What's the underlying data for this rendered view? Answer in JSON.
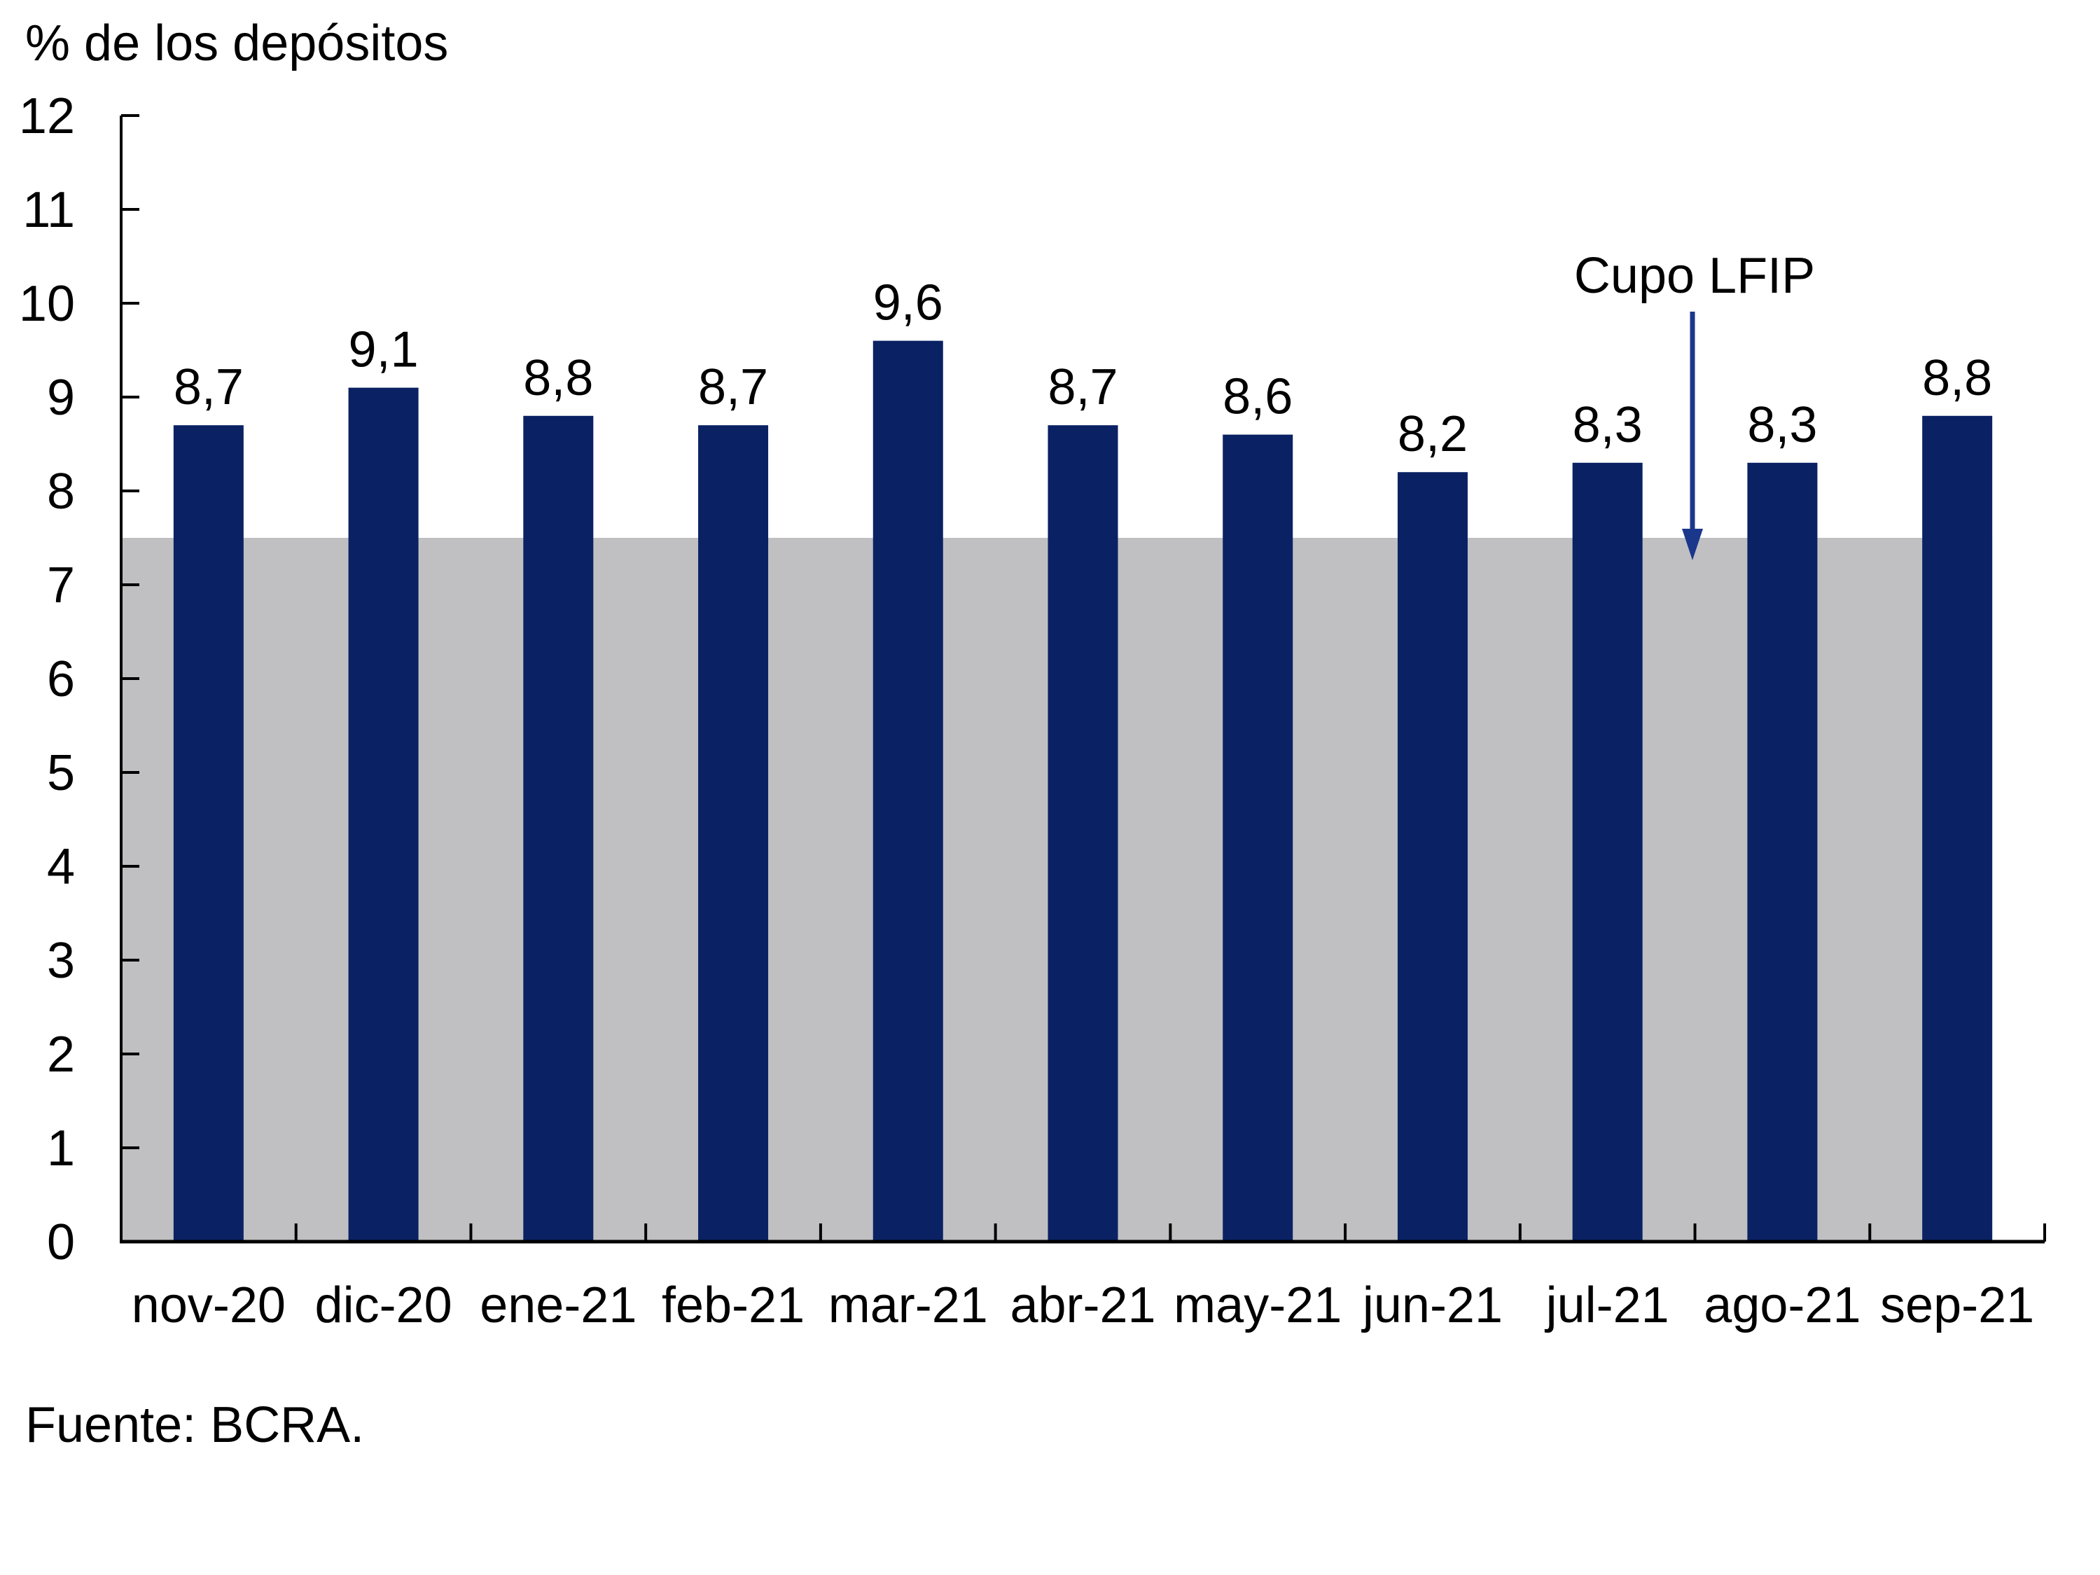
{
  "page": {
    "title": "% de los depósitos",
    "annotation_label": "Cupo LFIP",
    "source": "Fuente: BCRA."
  },
  "colors": {
    "bar": "#0A2264",
    "band": "#C0C0C2",
    "arrow": "#1B378C",
    "axis": "#000000",
    "text": "#000000",
    "background": "#FFFFFF"
  },
  "chart_data": {
    "type": "bar",
    "title": "% de los depósitos",
    "categories": [
      "nov-20",
      "dic-20",
      "ene-21",
      "feb-21",
      "mar-21",
      "abr-21",
      "may-21",
      "jun-21",
      "jul-21",
      "ago-21",
      "sep-21"
    ],
    "values": [
      8.7,
      9.1,
      8.8,
      8.7,
      9.6,
      8.7,
      8.6,
      8.2,
      8.3,
      8.3,
      8.8
    ],
    "value_labels": [
      "8,7",
      "9,1",
      "8,8",
      "8,7",
      "9,6",
      "8,7",
      "8,6",
      "8,2",
      "8,3",
      "8,3",
      "8,8"
    ],
    "band": {
      "label": "Cupo LFIP",
      "value": 7.5
    },
    "ylim": [
      0,
      12
    ],
    "ytick_step": 1,
    "grid": false,
    "legend": false,
    "decimal_separator": ",",
    "source": "Fuente: BCRA."
  }
}
